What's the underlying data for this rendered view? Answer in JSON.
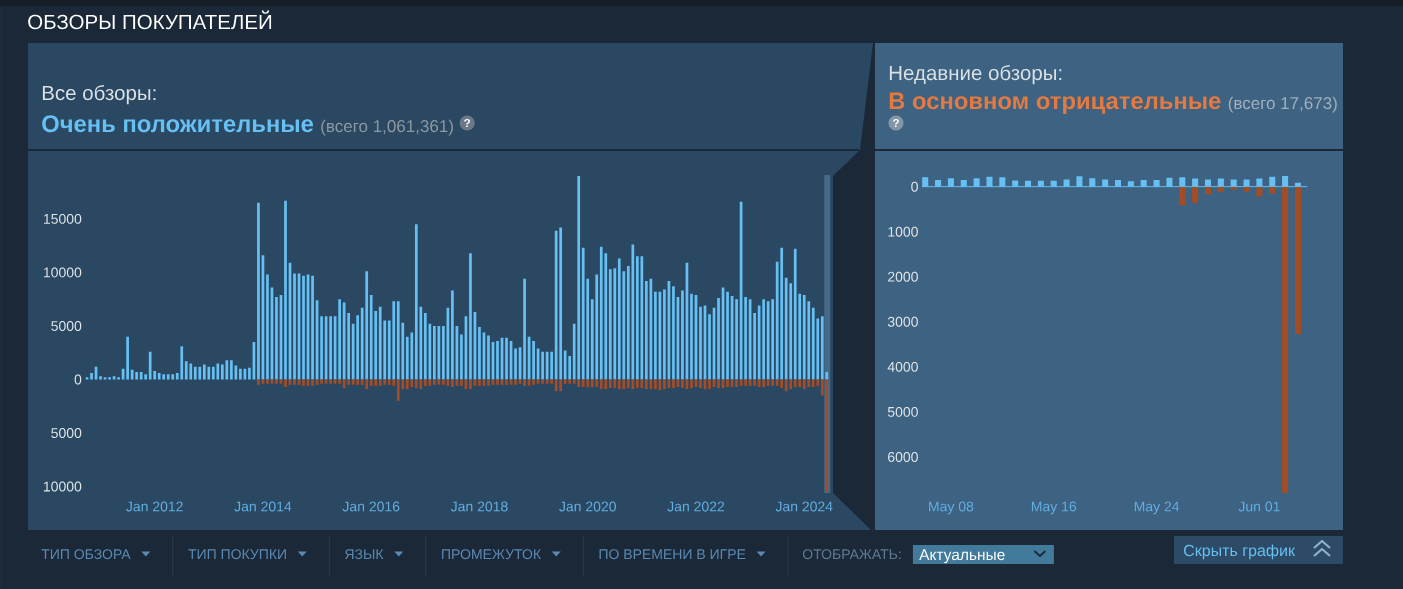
{
  "chart_data": [
    {
      "type": "other",
      "title": "ОБЗОРЫ ПОКУПАТЕЛЕЙ",
      "annotations": [
        "ТИП ОБЗОРА",
        "ТИП ПОКУПКИ",
        "ЯЗЫК",
        "ПРОМЕЖУТОК",
        "ПО ВРЕМЕНИ В ИГРЕ",
        "ОТОБРАЖАТЬ:",
        "Актуальные",
        "Скрыть график"
      ]
    },
    {
      "type": "bar",
      "stacked": true,
      "title": "Все обзоры:",
      "subtitle": "Очень положительные",
      "annotations": [
        "(всего 1,061,361)",
        "?"
      ],
      "x": [
        "2010-10",
        "2010-11",
        "2010-12",
        "2011-01",
        "2011-02",
        "2011-03",
        "2011-04",
        "2011-05",
        "2011-06",
        "2011-07",
        "2011-08",
        "2011-09",
        "2011-10",
        "2011-11",
        "2011-12",
        "2012-01",
        "2012-02",
        "2012-03",
        "2012-04",
        "2012-05",
        "2012-06",
        "2012-07",
        "2012-08",
        "2012-09",
        "2012-10",
        "2012-11",
        "2012-12",
        "2013-01",
        "2013-02",
        "2013-03",
        "2013-04",
        "2013-05",
        "2013-06",
        "2013-07",
        "2013-08",
        "2013-09",
        "2013-10",
        "2013-11",
        "2013-12",
        "2014-01",
        "2014-02",
        "2014-03",
        "2014-04",
        "2014-05",
        "2014-06",
        "2014-07",
        "2014-08",
        "2014-09",
        "2014-10",
        "2014-11",
        "2014-12",
        "2015-01",
        "2015-02",
        "2015-03",
        "2015-04",
        "2015-05",
        "2015-06",
        "2015-07",
        "2015-08",
        "2015-09",
        "2015-10",
        "2015-11",
        "2015-12",
        "2016-01",
        "2016-02",
        "2016-03",
        "2016-04",
        "2016-05",
        "2016-06",
        "2016-07",
        "2016-08",
        "2016-09",
        "2016-10",
        "2016-11",
        "2016-12",
        "2017-01",
        "2017-02",
        "2017-03",
        "2017-04",
        "2017-05",
        "2017-06",
        "2017-07",
        "2017-08",
        "2017-09",
        "2017-10",
        "2017-11",
        "2017-12",
        "2018-01",
        "2018-02",
        "2018-03",
        "2018-04",
        "2018-05",
        "2018-06",
        "2018-07",
        "2018-08",
        "2018-09",
        "2018-10",
        "2018-11",
        "2018-12",
        "2019-01",
        "2019-02",
        "2019-03",
        "2019-04",
        "2019-05",
        "2019-06",
        "2019-07",
        "2019-08",
        "2019-09",
        "2019-10",
        "2019-11",
        "2019-12",
        "2020-01",
        "2020-02",
        "2020-03",
        "2020-04",
        "2020-05",
        "2020-06",
        "2020-07",
        "2020-08",
        "2020-09",
        "2020-10",
        "2020-11",
        "2020-12",
        "2021-01",
        "2021-02",
        "2021-03",
        "2021-04",
        "2021-05",
        "2021-06",
        "2021-07",
        "2021-08",
        "2021-09",
        "2021-10",
        "2021-11",
        "2021-12",
        "2022-01",
        "2022-02",
        "2022-03",
        "2022-04",
        "2022-05",
        "2022-06",
        "2022-07",
        "2022-08",
        "2022-09",
        "2022-10",
        "2022-11",
        "2022-12",
        "2023-01",
        "2023-02",
        "2023-03",
        "2023-04",
        "2023-05",
        "2023-06",
        "2023-07",
        "2023-08",
        "2023-09",
        "2023-10",
        "2023-11",
        "2023-12",
        "2024-01",
        "2024-02",
        "2024-03",
        "2024-04",
        "2024-05",
        "2024-06"
      ],
      "series": [
        {
          "color": "#66c0f4",
          "values": [
            200,
            600,
            1200,
            300,
            200,
            200,
            300,
            200,
            1000,
            4000,
            900,
            700,
            700,
            500,
            2600,
            800,
            600,
            500,
            500,
            500,
            600,
            3100,
            1700,
            1500,
            1200,
            1200,
            1400,
            1200,
            1200,
            1500,
            1400,
            1800,
            1800,
            1300,
            1000,
            1000,
            1100,
            3500,
            16500,
            11600,
            9800,
            8600,
            7700,
            7900,
            16700,
            10900,
            9900,
            9900,
            9700,
            9800,
            9700,
            7400,
            5900,
            5900,
            5900,
            5900,
            7500,
            7200,
            6200,
            5200,
            6000,
            6700,
            10100,
            7900,
            6400,
            6800,
            5500,
            5500,
            7300,
            7300,
            5300,
            4000,
            4400,
            14500,
            6800,
            6200,
            5200,
            5000,
            5000,
            5000,
            6700,
            8300,
            5000,
            4200,
            5900,
            11800,
            6300,
            4900,
            4400,
            4100,
            3500,
            3600,
            3900,
            3900,
            3600,
            2900,
            3000,
            9400,
            4000,
            3600,
            2900,
            2600,
            2600,
            2600,
            13900,
            14200,
            2700,
            2200,
            5200,
            19000,
            12300,
            9400,
            7500,
            9800,
            12400,
            11800,
            10300,
            10400,
            11300,
            10100,
            10600,
            12600,
            11500,
            11500,
            9200,
            9400,
            8200,
            8200,
            8400,
            9200,
            8700,
            7700,
            8300,
            10900,
            8000,
            7900,
            6800,
            6900,
            6100,
            6700,
            7600,
            8600,
            8200,
            7800,
            7500,
            16600,
            7700,
            7500,
            6200,
            6900,
            7500,
            7300,
            7500,
            11000,
            12300,
            9500,
            9000,
            12200,
            8000,
            7900,
            7300,
            6700,
            5700,
            5900,
            700
          ]
        },
        {
          "color": "#a34c25",
          "values": [
            null,
            null,
            null,
            null,
            null,
            null,
            null,
            null,
            null,
            null,
            null,
            null,
            null,
            null,
            null,
            null,
            null,
            null,
            null,
            null,
            null,
            null,
            null,
            null,
            null,
            null,
            null,
            null,
            null,
            null,
            null,
            null,
            null,
            null,
            null,
            null,
            null,
            null,
            -500,
            -400,
            -400,
            -400,
            -400,
            -400,
            -700,
            -500,
            -500,
            -500,
            -600,
            -600,
            -600,
            -500,
            -400,
            -400,
            -400,
            -400,
            -400,
            -800,
            -500,
            -500,
            -500,
            -500,
            -900,
            -600,
            -600,
            -600,
            -500,
            -500,
            -600,
            -2000,
            -900,
            -900,
            -700,
            -800,
            -900,
            -600,
            -600,
            -500,
            -500,
            -500,
            -600,
            -700,
            -600,
            -600,
            -900,
            -900,
            -600,
            -600,
            -600,
            -600,
            -500,
            -500,
            -500,
            -500,
            -500,
            -500,
            -400,
            -600,
            -600,
            -500,
            -400,
            -400,
            -400,
            -400,
            -1100,
            -1100,
            -400,
            -400,
            -400,
            -700,
            -700,
            -700,
            -700,
            -700,
            -900,
            -900,
            -800,
            -800,
            -900,
            -900,
            -800,
            -900,
            -800,
            -800,
            -900,
            -900,
            -900,
            -1000,
            -900,
            -800,
            -800,
            -700,
            -800,
            -900,
            -800,
            -700,
            -800,
            -900,
            -900,
            -700,
            -800,
            -800,
            -700,
            -700,
            -700,
            -600,
            -600,
            -600,
            -600,
            -700,
            -700,
            -600,
            -600,
            -600,
            -800,
            -1100,
            -900,
            -700,
            -700,
            -900,
            -700,
            -700,
            -600,
            -1500,
            -10500
          ]
        }
      ],
      "xlim": [
        "2010-09-20",
        "2024-06-25"
      ],
      "xticks": [
        {
          "value": "2012-01",
          "label": "Jan 2012"
        },
        {
          "value": "2014-01",
          "label": "Jan 2014"
        },
        {
          "value": "2016-01",
          "label": "Jan 2016"
        },
        {
          "value": "2018-01",
          "label": "Jan 2018"
        },
        {
          "value": "2020-01",
          "label": "Jan 2020"
        },
        {
          "value": "2022-01",
          "label": "Jan 2022"
        },
        {
          "value": "2024-01",
          "label": "Jan 2024"
        }
      ],
      "ylim": [
        -10600,
        19100
      ],
      "yticks": [
        {
          "value": -10000,
          "label": "10000"
        },
        {
          "value": -5000,
          "label": "5000"
        },
        0,
        5000,
        10000,
        15000
      ],
      "bands": [
        {
          "axis": "x",
          "from": "2024-05-14",
          "to": "2024-06-25",
          "color": "#45698a"
        }
      ]
    },
    {
      "type": "bar",
      "stacked": true,
      "title": "Недавние обзоры:",
      "subtitle": "В основном отрицательные",
      "annotations": [
        "(всего 17,673)",
        "?"
      ],
      "x": [
        "2024-05-06",
        "2024-05-07",
        "2024-05-08",
        "2024-05-09",
        "2024-05-10",
        "2024-05-11",
        "2024-05-12",
        "2024-05-13",
        "2024-05-14",
        "2024-05-15",
        "2024-05-16",
        "2024-05-17",
        "2024-05-18",
        "2024-05-19",
        "2024-05-20",
        "2024-05-21",
        "2024-05-22",
        "2024-05-23",
        "2024-05-24",
        "2024-05-25",
        "2024-05-26",
        "2024-05-27",
        "2024-05-28",
        "2024-05-29",
        "2024-05-30",
        "2024-05-31",
        "2024-06-01",
        "2024-06-02",
        "2024-06-03",
        "2024-06-04"
      ],
      "series": [
        {
          "color": "#66c0f4",
          "values": [
            210,
            150,
            190,
            150,
            190,
            220,
            210,
            140,
            130,
            130,
            130,
            160,
            230,
            190,
            160,
            150,
            120,
            150,
            150,
            200,
            210,
            180,
            160,
            180,
            160,
            160,
            180,
            220,
            240,
            90
          ]
        },
        {
          "color": "#a34c25",
          "values": [
            null,
            null,
            null,
            null,
            null,
            null,
            null,
            null,
            null,
            null,
            null,
            null,
            null,
            null,
            null,
            null,
            null,
            null,
            null,
            null,
            -410,
            -360,
            -170,
            -110,
            -60,
            -110,
            -220,
            -150,
            -6800,
            -3270
          ]
        }
      ],
      "xlim": [
        "2024-05-05T18:00",
        "2024-06-04T18:00"
      ],
      "xticks": [
        {
          "value": "2024-05-08",
          "label": "May 08"
        },
        {
          "value": "2024-05-16",
          "label": "May 16"
        },
        {
          "value": "2024-05-24",
          "label": "May 24"
        },
        {
          "value": "2024-06-01",
          "label": "Jun 01"
        }
      ],
      "ylim": [
        -6800,
        260
      ],
      "yticks": [
        {
          "value": -6000,
          "label": "6000"
        },
        {
          "value": -5000,
          "label": "5000"
        },
        {
          "value": -4000,
          "label": "4000"
        },
        {
          "value": -3000,
          "label": "3000"
        },
        {
          "value": -2000,
          "label": "2000"
        },
        {
          "value": -1000,
          "label": "1000"
        },
        0
      ],
      "ref_lines": [
        {
          "axis": "y",
          "value": 0,
          "color": "#66c0f4"
        }
      ]
    }
  ]
}
